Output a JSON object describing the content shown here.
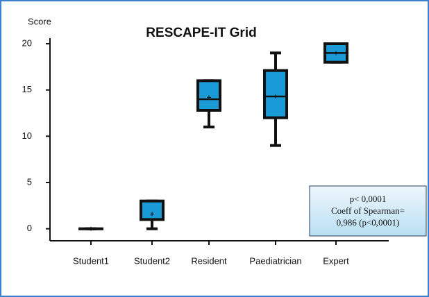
{
  "chart_data": {
    "type": "box",
    "title": "RESCAPE-IT Grid",
    "y_label": "Score",
    "categories": [
      "Student1",
      "Student2",
      "Resident",
      "Paediatrician",
      "Expert"
    ],
    "boxes": [
      {
        "min": 0,
        "q1": 0,
        "median": 0,
        "q3": 0,
        "max": 0,
        "mean": 0
      },
      {
        "min": 0,
        "q1": 1,
        "median": 1,
        "q3": 3,
        "max": 3,
        "mean": 1.6
      },
      {
        "min": 11,
        "q1": 12.8,
        "median": 14,
        "q3": 16,
        "max": 16,
        "mean": 14.2
      },
      {
        "min": 9,
        "q1": 12,
        "median": 14.3,
        "q3": 17.1,
        "max": 19,
        "mean": 14.3
      },
      {
        "min": 18,
        "q1": 18,
        "median": 19,
        "q3": 20,
        "max": 20,
        "mean": 19
      }
    ],
    "color": "#1a9ad6",
    "ylim": [
      -1.3,
      20.6
    ],
    "yticks": [
      0,
      5,
      10,
      15,
      20
    ],
    "annotation": [
      "p< 0,0001",
      "Coeff of Spearman=",
      "0,986 (p<0,0001)"
    ]
  }
}
